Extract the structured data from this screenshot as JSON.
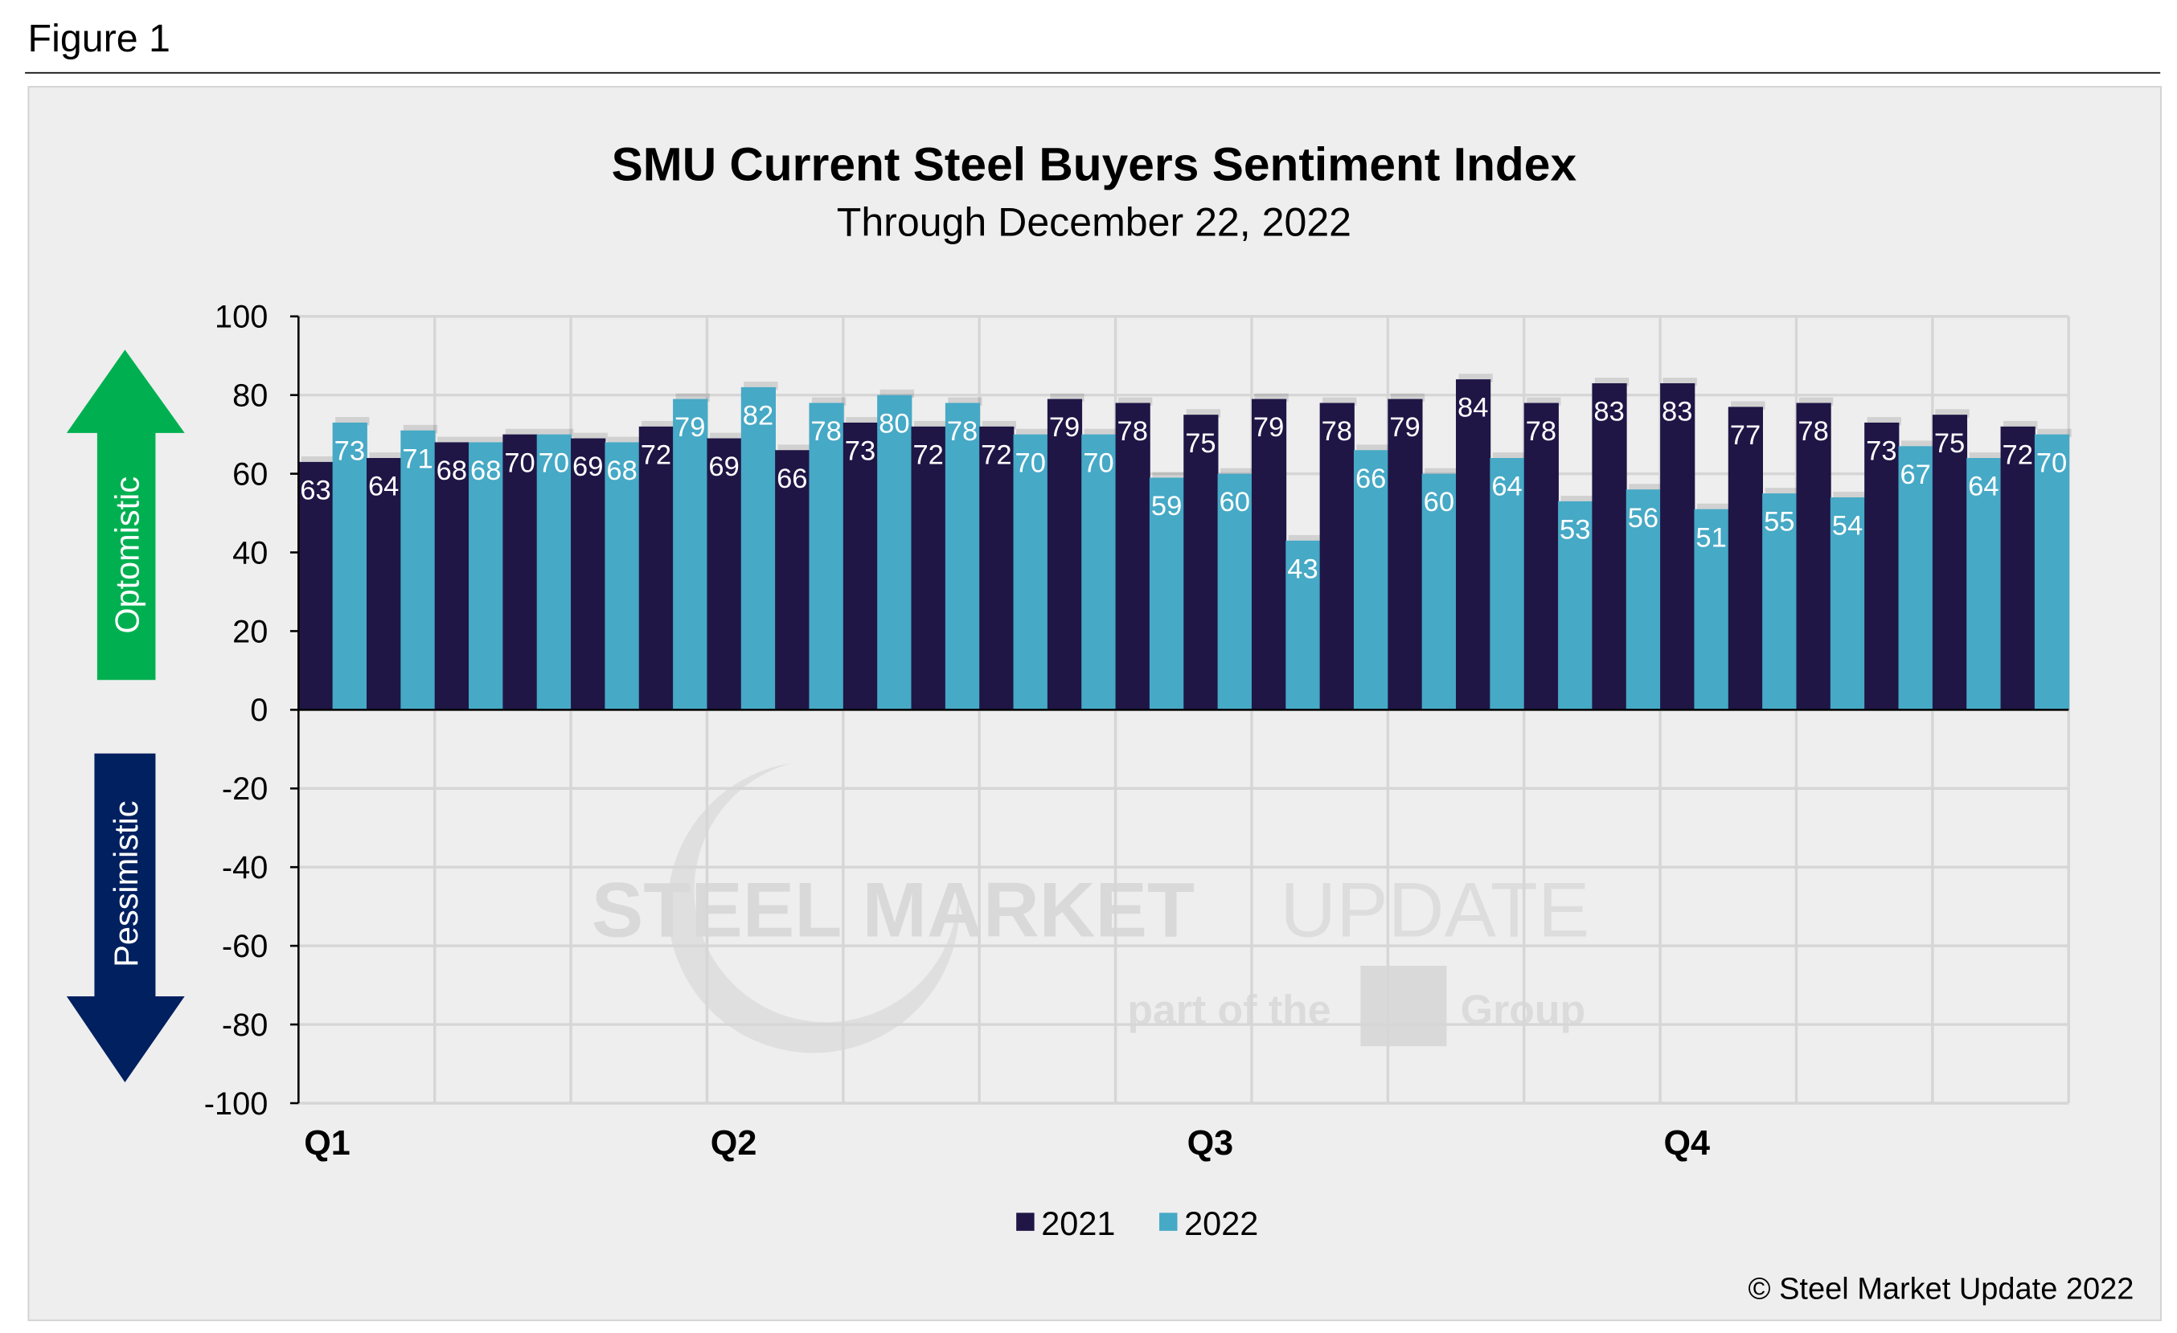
{
  "figure_label": "Figure 1",
  "copyright": "© Steel Market Update 2022",
  "watermark": {
    "line1_bold": "STEEL MARKET",
    "line1_light": "UPDATE",
    "line2_a": "part of the",
    "line2_logo": "CRU",
    "line2_b": "Group"
  },
  "side_labels": {
    "up": "Optomistic",
    "down": "Pessimistic"
  },
  "colors": {
    "s2021": "#1f1646",
    "s2022": "#46a9c6",
    "up_arrow": "#00b050",
    "down_arrow": "#002060"
  },
  "chart_data": {
    "type": "bar",
    "title": "SMU Current Steel Buyers Sentiment Index",
    "subtitle": "Through December 22, 2022",
    "xlabel": "",
    "ylabel": "",
    "ylim": [
      -100,
      100
    ],
    "yticks": [
      "100",
      "80",
      "60",
      "40",
      "20",
      "0",
      "-20",
      "-40",
      "-60",
      "-80",
      "-100"
    ],
    "grid": true,
    "legend": "bottom",
    "quarter_labels": [
      {
        "label": "Q1",
        "index": 0
      },
      {
        "label": "Q2",
        "index": 6
      },
      {
        "label": "Q3",
        "index": 13
      },
      {
        "label": "Q4",
        "index": 20
      }
    ],
    "series": [
      {
        "name": "2021",
        "values": [
          63,
          64,
          68,
          70,
          69,
          72,
          69,
          66,
          73,
          72,
          72,
          79,
          78,
          75,
          79,
          78,
          79,
          84,
          78,
          83,
          83,
          77,
          78,
          73,
          75,
          72
        ]
      },
      {
        "name": "2022",
        "values": [
          73,
          71,
          68,
          70,
          68,
          79,
          82,
          78,
          80,
          78,
          70,
          70,
          59,
          60,
          43,
          66,
          60,
          64,
          53,
          56,
          51,
          55,
          54,
          67,
          64,
          70
        ]
      }
    ]
  }
}
